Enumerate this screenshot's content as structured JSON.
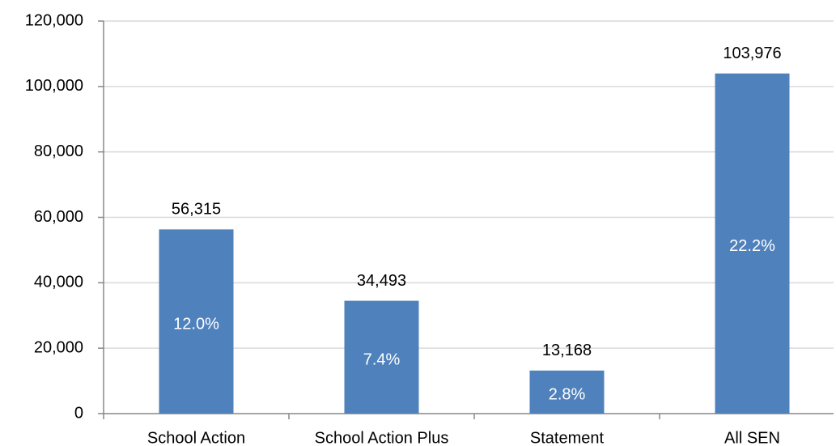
{
  "chart_data": {
    "type": "bar",
    "categories": [
      "School Action",
      "School Action Plus",
      "Statement",
      "All SEN"
    ],
    "values": [
      56315,
      34493,
      13168,
      103976
    ],
    "value_labels": [
      "56,315",
      "34,493",
      "13,168",
      "103,976"
    ],
    "share_labels": [
      "12.0%",
      "7.4%",
      "2.8%",
      "22.2%"
    ],
    "color": "#4f81bd",
    "ylim": [
      0,
      120000
    ],
    "yticks": [
      0,
      {
        "value": 20000,
        "label": "20,000"
      },
      {
        "value": 40000,
        "label": "40,000"
      },
      {
        "value": 60000,
        "label": "60,000"
      },
      {
        "value": 80000,
        "label": "80,000"
      },
      {
        "value": 100000,
        "label": "100,000"
      },
      {
        "value": 120000,
        "label": "120,000"
      }
    ],
    "grid": true
  }
}
